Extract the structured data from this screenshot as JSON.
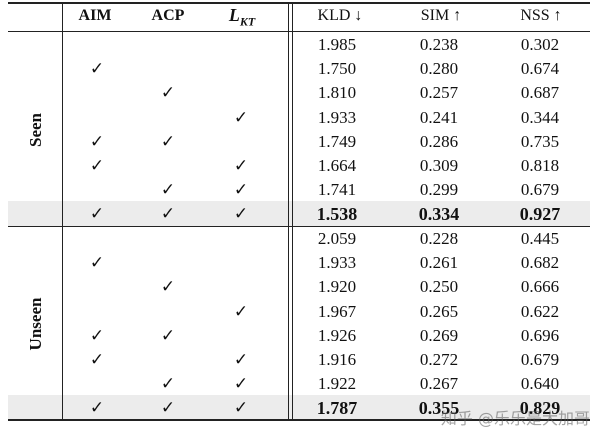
{
  "headers": {
    "aim": "AIM",
    "acp": "ACP",
    "lkt_main": "L",
    "lkt_sub": "KT",
    "kld": "KLD ↓",
    "sim": "SIM ↑",
    "nss": "NSS ↑"
  },
  "check_symbol": "✓",
  "groups": [
    {
      "label": "Seen",
      "rows": [
        {
          "aim": false,
          "acp": false,
          "lkt": false,
          "kld": "1.985",
          "sim": "0.238",
          "nss": "0.302"
        },
        {
          "aim": true,
          "acp": false,
          "lkt": false,
          "kld": "1.750",
          "sim": "0.280",
          "nss": "0.674"
        },
        {
          "aim": false,
          "acp": true,
          "lkt": false,
          "kld": "1.810",
          "sim": "0.257",
          "nss": "0.687"
        },
        {
          "aim": false,
          "acp": false,
          "lkt": true,
          "kld": "1.933",
          "sim": "0.241",
          "nss": "0.344"
        },
        {
          "aim": true,
          "acp": true,
          "lkt": false,
          "kld": "1.749",
          "sim": "0.286",
          "nss": "0.735"
        },
        {
          "aim": true,
          "acp": false,
          "lkt": true,
          "kld": "1.664",
          "sim": "0.309",
          "nss": "0.818"
        },
        {
          "aim": false,
          "acp": true,
          "lkt": true,
          "kld": "1.741",
          "sim": "0.299",
          "nss": "0.679"
        },
        {
          "aim": true,
          "acp": true,
          "lkt": true,
          "kld": "1.538",
          "sim": "0.334",
          "nss": "0.927",
          "highlight": true
        }
      ]
    },
    {
      "label": "Unseen",
      "rows": [
        {
          "aim": false,
          "acp": false,
          "lkt": false,
          "kld": "2.059",
          "sim": "0.228",
          "nss": "0.445"
        },
        {
          "aim": true,
          "acp": false,
          "lkt": false,
          "kld": "1.933",
          "sim": "0.261",
          "nss": "0.682"
        },
        {
          "aim": false,
          "acp": true,
          "lkt": false,
          "kld": "1.920",
          "sim": "0.250",
          "nss": "0.666"
        },
        {
          "aim": false,
          "acp": false,
          "lkt": true,
          "kld": "1.967",
          "sim": "0.265",
          "nss": "0.622"
        },
        {
          "aim": true,
          "acp": true,
          "lkt": false,
          "kld": "1.926",
          "sim": "0.269",
          "nss": "0.696"
        },
        {
          "aim": true,
          "acp": false,
          "lkt": true,
          "kld": "1.916",
          "sim": "0.272",
          "nss": "0.679"
        },
        {
          "aim": false,
          "acp": true,
          "lkt": true,
          "kld": "1.922",
          "sim": "0.267",
          "nss": "0.640"
        },
        {
          "aim": true,
          "acp": true,
          "lkt": true,
          "kld": "1.787",
          "sim": "0.355",
          "nss": "0.829",
          "highlight": true
        }
      ]
    }
  ],
  "watermark": "知乎 @乐乐是大加哥",
  "colors": {
    "highlight_row": "#ececec",
    "rule": "#222222"
  }
}
